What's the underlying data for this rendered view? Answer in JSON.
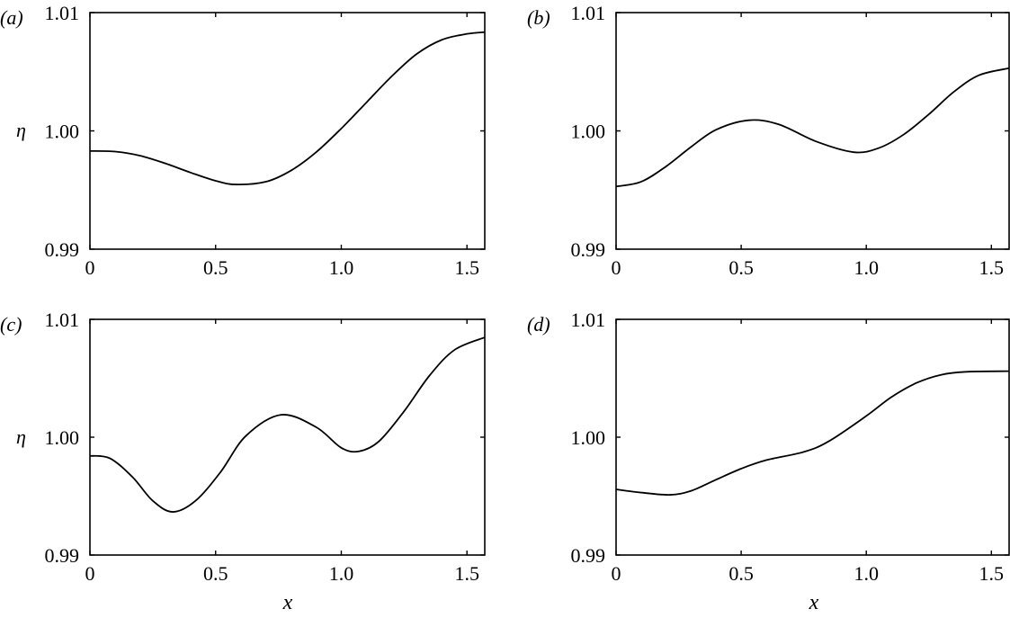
{
  "figure": {
    "background": "#ffffff",
    "line_color": "#000000"
  },
  "chart_data": [
    {
      "type": "line",
      "panel": "a",
      "panel_label": "(a)",
      "title": "",
      "xlabel": "",
      "ylabel": "η",
      "xlim": [
        0,
        1.5708
      ],
      "ylim": [
        0.99,
        1.01
      ],
      "xticks": [
        0,
        0.5,
        1.0,
        1.5
      ],
      "xtick_labels": [
        "0",
        "0.5",
        "1.0",
        "1.5"
      ],
      "yticks": [
        0.99,
        1.0,
        1.01
      ],
      "ytick_labels": [
        "0.99",
        "1.00",
        "1.01"
      ],
      "grid": false,
      "legend": null,
      "series": [
        {
          "name": "η(x)",
          "x": [
            0,
            0.1,
            0.2,
            0.3,
            0.4,
            0.5,
            0.58,
            0.7,
            0.8,
            0.9,
            1.0,
            1.1,
            1.2,
            1.3,
            1.4,
            1.5,
            1.5708
          ],
          "y": [
            0.9983,
            0.99825,
            0.9979,
            0.99725,
            0.99648,
            0.99578,
            0.99547,
            0.9957,
            0.99665,
            0.9982,
            1.0002,
            1.0024,
            1.0046,
            1.0065,
            1.0077,
            1.0082,
            1.00835
          ]
        }
      ]
    },
    {
      "type": "line",
      "panel": "b",
      "panel_label": "(b)",
      "title": "",
      "xlabel": "",
      "ylabel": "",
      "xlim": [
        0,
        1.5708
      ],
      "ylim": [
        0.99,
        1.01
      ],
      "xticks": [
        0,
        0.5,
        1.0,
        1.5
      ],
      "xtick_labels": [
        "0",
        "0.5",
        "1.0",
        "1.5"
      ],
      "yticks": [
        0.99,
        1.0,
        1.01
      ],
      "ytick_labels": [
        "0.99",
        "1.00",
        "1.01"
      ],
      "grid": false,
      "legend": null,
      "series": [
        {
          "name": "η(x)",
          "x": [
            0,
            0.1,
            0.2,
            0.3,
            0.4,
            0.53,
            0.65,
            0.8,
            0.95,
            1.05,
            1.15,
            1.25,
            1.35,
            1.45,
            1.5708
          ],
          "y": [
            0.9953,
            0.9957,
            0.997,
            0.99865,
            1.0001,
            1.0009,
            1.00055,
            0.9991,
            0.9982,
            0.99855,
            0.9997,
            1.0014,
            1.0033,
            1.0047,
            1.0053
          ]
        }
      ]
    },
    {
      "type": "line",
      "panel": "c",
      "panel_label": "(c)",
      "title": "",
      "xlabel": "x",
      "ylabel": "η",
      "xlim": [
        0,
        1.5708
      ],
      "ylim": [
        0.99,
        1.01
      ],
      "xticks": [
        0,
        0.5,
        1.0,
        1.5
      ],
      "xtick_labels": [
        "0",
        "0.5",
        "1.0",
        "1.5"
      ],
      "yticks": [
        0.99,
        1.0,
        1.01
      ],
      "ytick_labels": [
        "0.99",
        "1.00",
        "1.01"
      ],
      "grid": false,
      "legend": null,
      "series": [
        {
          "name": "η(x)",
          "x": [
            0,
            0.08,
            0.17,
            0.25,
            0.33,
            0.42,
            0.52,
            0.62,
            0.76,
            0.9,
            1.0,
            1.07,
            1.15,
            1.25,
            1.35,
            1.45,
            1.5708
          ],
          "y": [
            0.99842,
            0.9982,
            0.9966,
            0.9946,
            0.99366,
            0.9946,
            0.99705,
            1.0001,
            1.0019,
            1.00085,
            0.9991,
            0.9988,
            0.99965,
            1.0022,
            1.0052,
            1.0074,
            1.00847
          ]
        }
      ]
    },
    {
      "type": "line",
      "panel": "d",
      "panel_label": "(d)",
      "title": "",
      "xlabel": "x",
      "ylabel": "",
      "xlim": [
        0,
        1.5708
      ],
      "ylim": [
        0.99,
        1.01
      ],
      "xticks": [
        0,
        0.5,
        1.0,
        1.5
      ],
      "xtick_labels": [
        "0",
        "0.5",
        "1.0",
        "1.5"
      ],
      "yticks": [
        0.99,
        1.0,
        1.01
      ],
      "ytick_labels": [
        "0.99",
        "1.00",
        "1.01"
      ],
      "grid": false,
      "legend": null,
      "series": [
        {
          "name": "η(x)",
          "x": [
            0,
            0.1,
            0.216,
            0.3,
            0.4,
            0.5,
            0.6,
            0.75,
            0.85,
            1.0,
            1.1,
            1.2,
            1.3,
            1.4,
            1.5708
          ],
          "y": [
            0.99557,
            0.9953,
            0.99511,
            0.99545,
            0.9964,
            0.99733,
            0.99805,
            0.99875,
            0.99965,
            1.0018,
            1.0034,
            1.0046,
            1.0053,
            1.00555,
            1.0056
          ]
        }
      ]
    }
  ]
}
